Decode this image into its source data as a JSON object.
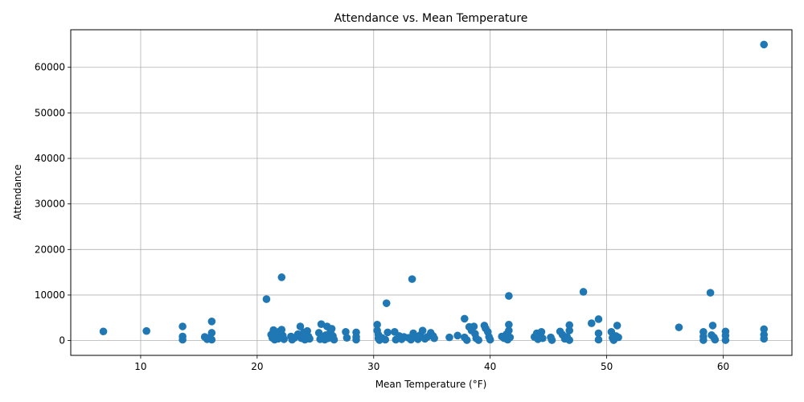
{
  "chart_data": {
    "type": "scatter",
    "title": "Attendance vs. Mean Temperature",
    "xlabel": "Mean Temperature (°F)",
    "ylabel": "Attendance",
    "xlim": [
      4.0,
      65.9
    ],
    "ylim": [
      -3250,
      68250
    ],
    "xticks": [
      10,
      20,
      30,
      40,
      50,
      60
    ],
    "yticks": [
      0,
      10000,
      20000,
      30000,
      40000,
      50000,
      60000
    ],
    "grid": true,
    "marker_color": "#1f77b4",
    "points": [
      [
        6.8,
        2000
      ],
      [
        10.5,
        2100
      ],
      [
        13.6,
        3100
      ],
      [
        13.6,
        900
      ],
      [
        13.6,
        200
      ],
      [
        15.5,
        800
      ],
      [
        15.7,
        300
      ],
      [
        15.9,
        600
      ],
      [
        16.1,
        1700
      ],
      [
        16.1,
        4200
      ],
      [
        16.1,
        200
      ],
      [
        20.8,
        9100
      ],
      [
        21.2,
        1300
      ],
      [
        21.3,
        600
      ],
      [
        21.4,
        2300
      ],
      [
        21.5,
        200
      ],
      [
        21.6,
        1500
      ],
      [
        21.8,
        400
      ],
      [
        21.9,
        2000
      ],
      [
        22.0,
        800
      ],
      [
        22.1,
        2400
      ],
      [
        22.2,
        1100
      ],
      [
        22.1,
        13900
      ],
      [
        22.3,
        300
      ],
      [
        22.9,
        900
      ],
      [
        23.0,
        200
      ],
      [
        23.2,
        600
      ],
      [
        23.5,
        1400
      ],
      [
        23.7,
        3100
      ],
      [
        23.8,
        500
      ],
      [
        24.0,
        1800
      ],
      [
        24.1,
        200
      ],
      [
        24.3,
        2100
      ],
      [
        24.4,
        900
      ],
      [
        24.5,
        400
      ],
      [
        25.3,
        1700
      ],
      [
        25.4,
        300
      ],
      [
        25.5,
        3600
      ],
      [
        25.6,
        800
      ],
      [
        25.8,
        200
      ],
      [
        25.9,
        1200
      ],
      [
        26.0,
        3100
      ],
      [
        26.1,
        500
      ],
      [
        26.3,
        2000
      ],
      [
        26.4,
        2600
      ],
      [
        26.5,
        1000
      ],
      [
        26.6,
        200
      ],
      [
        27.6,
        1900
      ],
      [
        27.7,
        600
      ],
      [
        28.5,
        1800
      ],
      [
        28.5,
        800
      ],
      [
        28.5,
        200
      ],
      [
        30.3,
        3500
      ],
      [
        30.3,
        2200
      ],
      [
        30.4,
        1300
      ],
      [
        30.4,
        500
      ],
      [
        30.5,
        100
      ],
      [
        30.7,
        600
      ],
      [
        31.0,
        200
      ],
      [
        31.1,
        8200
      ],
      [
        31.2,
        1800
      ],
      [
        31.8,
        1900
      ],
      [
        31.9,
        200
      ],
      [
        32.2,
        1000
      ],
      [
        32.4,
        300
      ],
      [
        32.6,
        800
      ],
      [
        33.0,
        600
      ],
      [
        33.2,
        200
      ],
      [
        33.3,
        13500
      ],
      [
        33.4,
        1600
      ],
      [
        33.6,
        900
      ],
      [
        33.8,
        300
      ],
      [
        34.0,
        1200
      ],
      [
        34.2,
        2200
      ],
      [
        34.4,
        400
      ],
      [
        34.6,
        800
      ],
      [
        34.9,
        1700
      ],
      [
        35.1,
        1000
      ],
      [
        35.2,
        500
      ],
      [
        36.5,
        700
      ],
      [
        37.2,
        1100
      ],
      [
        37.8,
        4800
      ],
      [
        37.8,
        700
      ],
      [
        38.0,
        100
      ],
      [
        38.2,
        3000
      ],
      [
        38.4,
        2200
      ],
      [
        38.6,
        3100
      ],
      [
        38.7,
        1500
      ],
      [
        38.8,
        500
      ],
      [
        39.0,
        100
      ],
      [
        39.5,
        3300
      ],
      [
        39.6,
        2700
      ],
      [
        39.8,
        1900
      ],
      [
        39.9,
        800
      ],
      [
        40.0,
        200
      ],
      [
        41.0,
        900
      ],
      [
        41.2,
        500
      ],
      [
        41.4,
        1400
      ],
      [
        41.5,
        200
      ],
      [
        41.6,
        3500
      ],
      [
        41.6,
        2200
      ],
      [
        41.6,
        9800
      ],
      [
        41.7,
        700
      ],
      [
        43.8,
        800
      ],
      [
        44.0,
        1600
      ],
      [
        44.1,
        300
      ],
      [
        44.2,
        1100
      ],
      [
        44.4,
        1900
      ],
      [
        44.5,
        500
      ],
      [
        45.2,
        700
      ],
      [
        45.3,
        100
      ],
      [
        46.0,
        2000
      ],
      [
        46.2,
        1300
      ],
      [
        46.4,
        400
      ],
      [
        46.6,
        800
      ],
      [
        46.8,
        3400
      ],
      [
        46.8,
        2200
      ],
      [
        46.8,
        100
      ],
      [
        48.0,
        10700
      ],
      [
        48.7,
        3800
      ],
      [
        49.3,
        4700
      ],
      [
        49.3,
        1600
      ],
      [
        49.3,
        200
      ],
      [
        50.4,
        1900
      ],
      [
        50.5,
        600
      ],
      [
        50.6,
        100
      ],
      [
        50.8,
        1000
      ],
      [
        50.9,
        3300
      ],
      [
        51.0,
        700
      ],
      [
        56.2,
        2900
      ],
      [
        58.3,
        1900
      ],
      [
        58.3,
        900
      ],
      [
        58.3,
        100
      ],
      [
        58.9,
        10500
      ],
      [
        59.0,
        1200
      ],
      [
        59.1,
        3300
      ],
      [
        59.2,
        700
      ],
      [
        59.3,
        200
      ],
      [
        60.2,
        2000
      ],
      [
        60.2,
        1100
      ],
      [
        60.2,
        100
      ],
      [
        63.5,
        65000
      ],
      [
        63.5,
        2500
      ],
      [
        63.5,
        1300
      ],
      [
        63.5,
        400
      ]
    ]
  }
}
